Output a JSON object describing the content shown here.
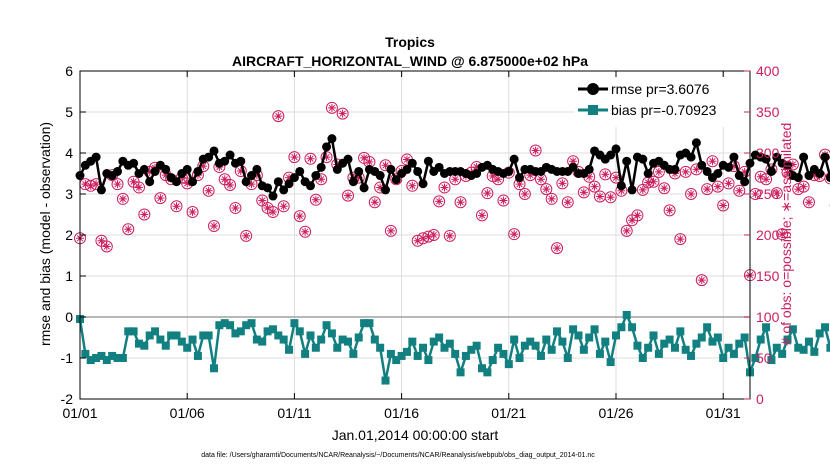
{
  "chart_data": {
    "type": "line",
    "title": "Tropics",
    "subtitle": "AIRCRAFT_HORIZONTAL_WIND @ 6.875000e+02 hPa",
    "xlabel": "Jan.01,2014 00:00:00 start",
    "ylabel": "rmse and bias (model - observation)",
    "ylabel_right": "# of obs: o=possible; ∗=assimilated",
    "footnote": "data file: /Users/gharamti/Documents/NCAR/Reanalysis/~/Documents/NCAR/Reanalysis/webpub/obs_diag_output_2014-01.nc",
    "x_range": [
      1,
      32.25
    ],
    "ylim": [
      -2,
      6
    ],
    "ylim_right": [
      0,
      400
    ],
    "x_ticks": [
      1,
      6,
      11,
      16,
      21,
      26,
      31
    ],
    "x_tick_labels": [
      "01/01",
      "01/06",
      "01/11",
      "01/16",
      "01/21",
      "01/26",
      "01/31"
    ],
    "y_ticks": [
      -2,
      -1,
      0,
      1,
      2,
      3,
      4,
      5,
      6
    ],
    "y_tick_labels": [
      "-2",
      "-1",
      "0",
      "1",
      "2",
      "3",
      "4",
      "5",
      "6"
    ],
    "y_right_ticks": [
      0,
      50,
      100,
      150,
      200,
      250,
      300,
      350,
      400
    ],
    "y_right_tick_labels": [
      "0",
      "50",
      "100",
      "150",
      "200",
      "250",
      "300",
      "350",
      "400"
    ],
    "grid": true,
    "legend_position": "top-right",
    "colors": {
      "rmse": "#000000",
      "bias": "#128080",
      "obs": "#cc1f5e",
      "zero_line": "#a0a0a0",
      "grid": "#dddddd"
    },
    "x_step_days": 0.25,
    "series": [
      {
        "name": "rmse pr=3.6076",
        "axis": "left",
        "marker": "circle",
        "values": [
          3.45,
          3.7,
          3.8,
          3.9,
          3.1,
          3.5,
          3.45,
          3.55,
          3.8,
          3.7,
          3.75,
          3.5,
          3.6,
          3.3,
          3.55,
          3.7,
          3.6,
          3.4,
          3.3,
          3.5,
          3.6,
          3.3,
          3.55,
          3.85,
          3.9,
          4.05,
          3.75,
          3.8,
          3.95,
          3.75,
          3.8,
          3.3,
          3.45,
          3.6,
          3.2,
          3.15,
          2.95,
          3.3,
          3.1,
          3.25,
          3.4,
          3.55,
          3.3,
          3.2,
          3.45,
          3.65,
          4.15,
          4.35,
          3.6,
          3.75,
          3.85,
          3.3,
          3.55,
          3.15,
          3.6,
          3.55,
          3.45,
          3.1,
          3.6,
          3.35,
          3.5,
          3.6,
          3.75,
          3.55,
          3.25,
          3.8,
          3.55,
          3.65,
          3.5,
          3.55,
          3.55,
          3.55,
          3.5,
          3.45,
          3.5,
          3.65,
          3.7,
          3.6,
          3.55,
          3.5,
          3.55,
          3.85,
          3.4,
          3.6,
          3.6,
          3.55,
          3.55,
          3.65,
          3.6,
          3.55,
          3.55,
          3.55,
          3.65,
          3.5,
          3.5,
          3.6,
          4.05,
          3.95,
          3.85,
          3.95,
          4.1,
          3.2,
          3.8,
          3.1,
          3.9,
          3.85,
          3.5,
          3.75,
          3.8,
          3.7,
          3.6,
          3.6,
          3.95,
          4.0,
          3.9,
          4.25,
          3.7,
          3.55,
          3.4,
          3.5,
          3.7,
          3.65,
          3.9,
          3.45,
          3.3,
          3.75,
          3.95,
          3.9,
          3.85,
          3.55,
          3.9,
          3.75,
          3.7,
          3.45,
          3.4,
          3.9,
          3.45,
          3.6,
          3.5,
          3.9,
          3.4,
          3.75,
          3.8,
          3.65,
          3.5,
          3.65,
          3.7,
          3.65,
          3.6,
          3.55,
          3.65,
          3.7,
          3.8,
          3.9,
          3.85,
          3.15,
          3.7,
          4.05,
          4.15,
          4.0,
          4.0,
          3.3,
          3.9,
          3.9,
          4.3,
          4.1,
          4.5,
          4.1,
          4.0,
          4.65,
          4.25,
          4.05,
          3.9,
          4.35,
          3.8,
          3.75,
          3.85,
          3.35,
          4.2
        ]
      },
      {
        "name": "bias pr=-0.70923",
        "axis": "left",
        "marker": "square",
        "values": [
          -0.05,
          -0.9,
          -1.05,
          -1.0,
          -0.95,
          -1.05,
          -0.95,
          -1.0,
          -1.0,
          -0.35,
          -0.35,
          -0.65,
          -0.7,
          -0.45,
          -0.35,
          -0.55,
          -0.7,
          -0.45,
          -0.45,
          -0.6,
          -0.75,
          -0.55,
          -0.95,
          -0.45,
          -0.45,
          -1.25,
          -0.2,
          -0.15,
          -0.2,
          -0.4,
          -0.35,
          -0.2,
          -0.15,
          -0.55,
          -0.6,
          -0.35,
          -0.3,
          -0.45,
          -0.55,
          -0.8,
          -0.15,
          -0.35,
          -0.9,
          -0.45,
          -0.75,
          -0.55,
          -0.2,
          -0.4,
          -0.75,
          -0.55,
          -0.6,
          -0.9,
          -0.5,
          -0.15,
          -0.15,
          -0.55,
          -0.75,
          -1.55,
          -0.9,
          -1.05,
          -0.95,
          -0.85,
          -0.6,
          -0.95,
          -0.75,
          -1.05,
          -0.6,
          -0.5,
          -0.75,
          -0.65,
          -0.9,
          -1.35,
          -0.95,
          -0.8,
          -0.7,
          -1.25,
          -1.35,
          -1.05,
          -0.75,
          -0.9,
          -1.15,
          -0.55,
          -1.0,
          -0.7,
          -0.6,
          -0.7,
          -0.95,
          -0.55,
          -0.8,
          -0.35,
          -0.6,
          -1.0,
          -0.3,
          -0.45,
          -0.8,
          -0.5,
          -0.3,
          -0.9,
          -0.6,
          -1.1,
          -0.45,
          -0.25,
          0.05,
          -0.25,
          -0.7,
          -1.0,
          -0.75,
          -0.45,
          -0.9,
          -0.65,
          -0.55,
          -0.75,
          -0.35,
          -0.8,
          -0.95,
          -0.65,
          -0.5,
          -0.25,
          -0.6,
          -0.5,
          -1.0,
          -0.75,
          -0.9,
          -0.65,
          -0.5,
          -1.35,
          -1.0,
          -0.55,
          -0.25,
          -1.05,
          -0.75,
          -0.9,
          -0.55,
          -0.3,
          -0.75,
          -0.8,
          -0.6,
          -0.85,
          -0.4,
          -0.25,
          -0.75,
          -0.55,
          -0.65,
          -0.6,
          -0.95,
          -0.7,
          -0.4,
          -0.75,
          -1.1,
          -0.45,
          -0.6,
          -1.0,
          -0.3,
          -0.45,
          -0.8,
          -0.5,
          -1.65,
          -0.95,
          -0.55,
          -0.8,
          -0.4,
          -0.9,
          -0.5,
          -0.6,
          -0.3,
          -1.0,
          -0.45,
          -0.8,
          -0.55,
          -1.0,
          -0.5
        ]
      },
      {
        "name": "obs possible",
        "axis": "right",
        "marker": "circle-open",
        "values": [
          196,
          262,
          260,
          262,
          193,
          186,
          273,
          262,
          244,
          207,
          265,
          258,
          225,
          277,
          282,
          245,
          273,
          268,
          235,
          270,
          263,
          228,
          273,
          284,
          254,
          211,
          283,
          268,
          261,
          233,
          278,
          199,
          262,
          273,
          242,
          233,
          228,
          345,
          235,
          270,
          295,
          223,
          204,
          293,
          243,
          268,
          295,
          355,
          286,
          348,
          248,
          270,
          270,
          294,
          289,
          240,
          258,
          285,
          205,
          268,
          278,
          292,
          260,
          193,
          196,
          198,
          200,
          241,
          258,
          199,
          268,
          240,
          272,
          276,
          283,
          224,
          251,
          272,
          268,
          242,
          276,
          201,
          262,
          250,
          273,
          303,
          268,
          256,
          244,
          184,
          263,
          240,
          290,
          277,
          252,
          271,
          259,
          247,
          274,
          246,
          270,
          254,
          205,
          218,
          224,
          255,
          264,
          265,
          277,
          257,
          230,
          275,
          195,
          277,
          250,
          280,
          145,
          256,
          290,
          259,
          236,
          263,
          284,
          254,
          277,
          151,
          250,
          271,
          268,
          280,
          251,
          201,
          276,
          286,
          256,
          259,
          240,
          273,
          272,
          298,
          269,
          236,
          256,
          289,
          278,
          222,
          264,
          243,
          215,
          284,
          196,
          263,
          200,
          277,
          201,
          261,
          243,
          205,
          166,
          203,
          178,
          198,
          216,
          171,
          243,
          203,
          176,
          263,
          220,
          223,
          246,
          180,
          233,
          172,
          270,
          201,
          298,
          198,
          228,
          145,
          224,
          153,
          157,
          183,
          136
        ]
      },
      {
        "name": "obs assimilated",
        "axis": "right",
        "marker": "asterisk",
        "values": [
          196,
          262,
          260,
          262,
          193,
          186,
          273,
          262,
          244,
          207,
          265,
          258,
          225,
          277,
          282,
          245,
          273,
          268,
          235,
          270,
          263,
          228,
          273,
          284,
          254,
          211,
          283,
          268,
          261,
          233,
          278,
          199,
          262,
          273,
          242,
          233,
          228,
          345,
          235,
          270,
          295,
          223,
          204,
          293,
          243,
          268,
          295,
          355,
          286,
          348,
          248,
          270,
          270,
          294,
          289,
          240,
          258,
          285,
          205,
          268,
          278,
          292,
          260,
          193,
          196,
          198,
          200,
          241,
          258,
          199,
          268,
          240,
          272,
          276,
          283,
          224,
          251,
          272,
          268,
          242,
          276,
          201,
          262,
          250,
          273,
          303,
          268,
          256,
          244,
          184,
          263,
          240,
          290,
          277,
          252,
          271,
          259,
          247,
          274,
          246,
          270,
          254,
          205,
          218,
          224,
          255,
          264,
          265,
          277,
          257,
          230,
          275,
          195,
          277,
          250,
          280,
          145,
          256,
          290,
          259,
          236,
          263,
          284,
          254,
          277,
          151,
          250,
          271,
          268,
          280,
          251,
          201,
          276,
          286,
          256,
          259,
          240,
          273,
          272,
          298,
          269,
          236,
          256,
          289,
          278,
          222,
          264,
          243,
          215,
          284,
          196,
          263,
          200,
          277,
          201,
          261,
          243,
          205,
          166,
          203,
          178,
          198,
          216,
          171,
          243,
          203,
          176,
          263,
          220,
          223,
          246,
          180,
          233,
          172,
          270,
          201,
          298,
          198,
          228,
          145,
          224,
          153,
          157,
          183,
          136
        ]
      }
    ]
  }
}
